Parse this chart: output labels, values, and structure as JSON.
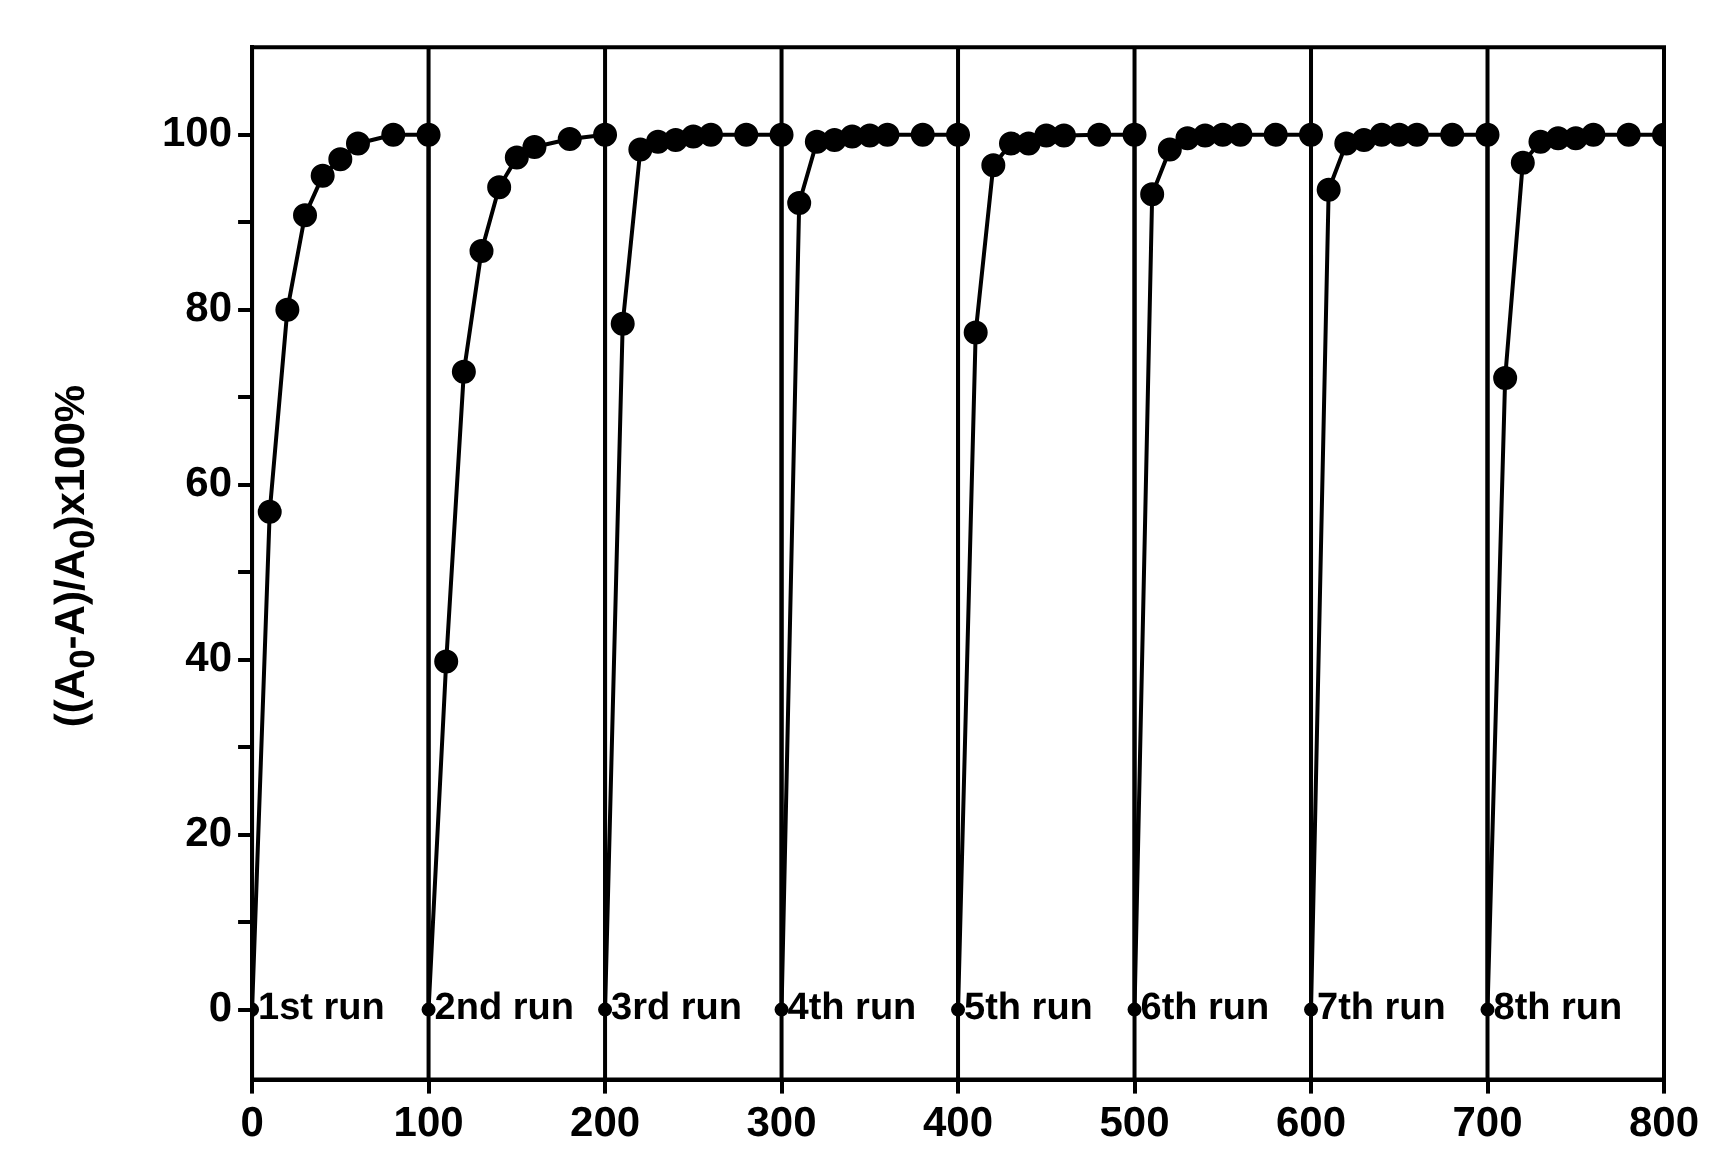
{
  "chart_data": {
    "type": "line",
    "ylabel": "((A$_{0}$-A)/A$_{0}$)x100%",
    "series": [
      {
        "color": "#000000",
        "x": [
          0,
          10,
          20,
          30,
          40,
          50,
          60,
          80,
          100,
          100,
          110,
          120,
          130,
          140,
          150,
          160,
          180,
          200,
          200,
          210,
          220,
          230,
          240,
          250,
          260,
          280,
          300,
          300,
          310,
          320,
          330,
          340,
          350,
          360,
          380,
          400,
          400,
          410,
          420,
          430,
          440,
          450,
          460,
          480,
          500,
          500,
          510,
          520,
          530,
          540,
          550,
          560,
          580,
          600,
          600,
          610,
          620,
          630,
          640,
          650,
          660,
          680,
          700,
          700,
          710,
          720,
          730,
          740,
          750,
          760,
          780,
          800
        ],
        "values": [
          0,
          56.9,
          80,
          90.8,
          95.3,
          97.2,
          99,
          100,
          100,
          0,
          39.8,
          72.9,
          86.7,
          94,
          97.4,
          98.6,
          99.5,
          100,
          0,
          78.4,
          98.3,
          99.2,
          99.4,
          99.8,
          100,
          100,
          100,
          0,
          92.2,
          99.2,
          99.4,
          99.8,
          99.9,
          100,
          100,
          100,
          0,
          77.4,
          96.5,
          99,
          99,
          99.9,
          99.9,
          100,
          100,
          0,
          93.2,
          98.3,
          99.6,
          99.9,
          100,
          100,
          100,
          100,
          0,
          93.7,
          99,
          99.4,
          100,
          100,
          100,
          100,
          100,
          0,
          72.2,
          96.8,
          99.2,
          99.6,
          99.6,
          100,
          100,
          100
        ]
      }
    ],
    "xlim": [
      0,
      800
    ],
    "xticks": [
      0,
      100,
      200,
      300,
      400,
      500,
      600,
      700,
      800
    ],
    "ylim": [
      -8,
      110
    ],
    "yticks": [
      0,
      {
        "value": 10,
        "label": null
      },
      20,
      {
        "value": 30,
        "label": null
      },
      40,
      {
        "value": 50,
        "label": null
      },
      60,
      {
        "value": 70,
        "label": null
      },
      80,
      {
        "value": 90,
        "label": null
      },
      100
    ],
    "ref_lines": [
      {
        "axis": "x",
        "value": 100,
        "color": "#000000"
      },
      {
        "axis": "x",
        "value": 200,
        "color": "#000000"
      },
      {
        "axis": "x",
        "value": 300,
        "color": "#000000"
      },
      {
        "axis": "x",
        "value": 400,
        "color": "#000000"
      },
      {
        "axis": "x",
        "value": 500,
        "color": "#000000"
      },
      {
        "axis": "x",
        "value": 600,
        "color": "#000000"
      },
      {
        "axis": "x",
        "value": 700,
        "color": "#000000"
      }
    ],
    "annotations": [
      {
        "text": "1st run",
        "x": 0,
        "y": 0
      },
      {
        "text": "2nd run",
        "x": 100,
        "y": 0
      },
      {
        "text": "3rd run",
        "x": 200,
        "y": 0
      },
      {
        "text": "4th run",
        "x": 300,
        "y": 0
      },
      {
        "text": "5th run",
        "x": 400,
        "y": 0
      },
      {
        "text": "6th run",
        "x": 500,
        "y": 0
      },
      {
        "text": "7th run",
        "x": 600,
        "y": 0
      },
      {
        "text": "8th run",
        "x": 700,
        "y": 0
      }
    ],
    "grid": false,
    "legend": false,
    "marker": "circle",
    "line_style": "solid"
  }
}
